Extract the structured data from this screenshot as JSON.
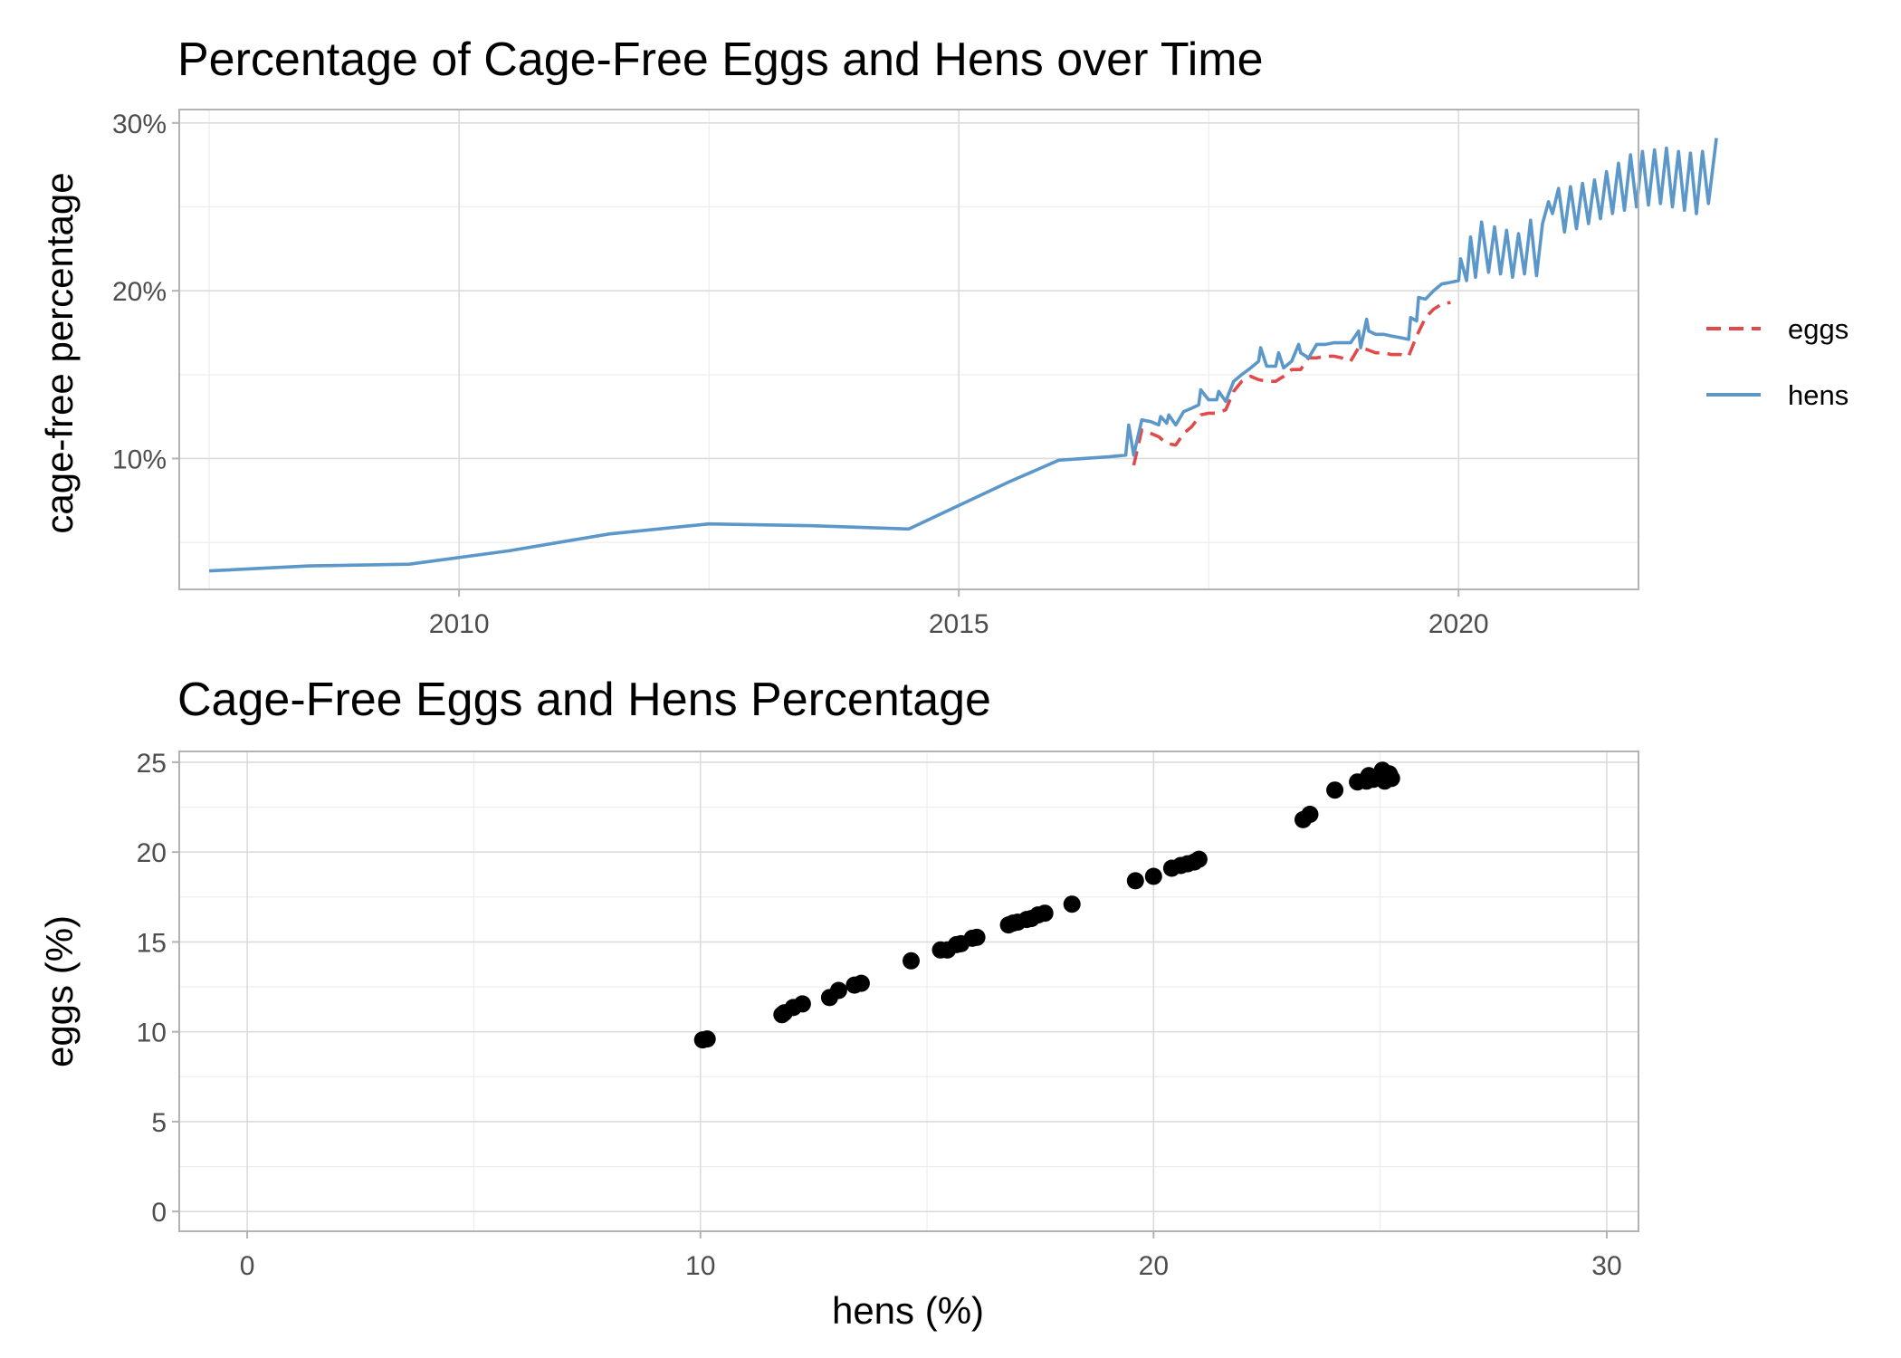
{
  "chart_data": [
    {
      "type": "line",
      "title": "Percentage of Cage-Free Eggs and Hens over Time",
      "xlabel": "",
      "ylabel": "cage-free percentage",
      "x_ticks": [
        2010,
        2015,
        2020
      ],
      "y_ticks": [
        10,
        20,
        30
      ],
      "y_tick_labels": [
        "10%",
        "20%",
        "30%"
      ],
      "xlim": [
        2007.2,
        2021.8
      ],
      "ylim": [
        2.2,
        30.8
      ],
      "grid": true,
      "legend_position": "right",
      "series": [
        {
          "name": "eggs",
          "color": "#e04a4a",
          "dash": "dashed",
          "points": [
            [
              2016.75,
              9.6
            ],
            [
              2016.83,
              11.7
            ],
            [
              2016.92,
              11.5
            ],
            [
              2017.0,
              11.3
            ],
            [
              2017.08,
              10.9
            ],
            [
              2017.17,
              10.8
            ],
            [
              2017.25,
              11.5
            ],
            [
              2017.33,
              11.9
            ],
            [
              2017.42,
              12.6
            ],
            [
              2017.5,
              12.7
            ],
            [
              2017.58,
              12.7
            ],
            [
              2017.67,
              12.9
            ],
            [
              2017.75,
              14.0
            ],
            [
              2017.83,
              14.6
            ],
            [
              2017.92,
              14.9
            ],
            [
              2018.0,
              14.7
            ],
            [
              2018.08,
              14.6
            ],
            [
              2018.17,
              14.6
            ],
            [
              2018.25,
              14.9
            ],
            [
              2018.33,
              15.3
            ],
            [
              2018.42,
              15.3
            ],
            [
              2018.5,
              16.0
            ],
            [
              2018.58,
              16.0
            ],
            [
              2018.67,
              16.1
            ],
            [
              2018.75,
              16.1
            ],
            [
              2018.83,
              16.0
            ],
            [
              2018.92,
              15.8
            ],
            [
              2019.0,
              16.6
            ],
            [
              2019.08,
              16.5
            ],
            [
              2019.17,
              16.3
            ],
            [
              2019.25,
              16.3
            ],
            [
              2019.33,
              16.2
            ],
            [
              2019.42,
              16.2
            ],
            [
              2019.5,
              16.1
            ],
            [
              2019.58,
              17.3
            ],
            [
              2019.67,
              18.4
            ],
            [
              2019.75,
              18.9
            ],
            [
              2019.83,
              19.2
            ],
            [
              2019.92,
              19.3
            ]
          ]
        },
        {
          "name": "hens",
          "color": "#5b97c9",
          "dash": "solid",
          "points": [
            [
              2007.5,
              3.3
            ],
            [
              2008.5,
              3.6
            ],
            [
              2009.5,
              3.7
            ],
            [
              2010.5,
              4.5
            ],
            [
              2011.5,
              5.5
            ],
            [
              2012.5,
              6.1
            ],
            [
              2013.5,
              6.0
            ],
            [
              2014.5,
              5.8
            ],
            [
              2015.5,
              8.6
            ],
            [
              2016.0,
              9.9
            ],
            [
              2016.5,
              10.1
            ],
            [
              2016.67,
              10.2
            ],
            [
              2016.7,
              12.0
            ],
            [
              2016.75,
              10.2
            ],
            [
              2016.83,
              12.3
            ],
            [
              2016.92,
              12.2
            ],
            [
              2017.0,
              12.0
            ],
            [
              2017.02,
              12.5
            ],
            [
              2017.08,
              12.1
            ],
            [
              2017.1,
              12.6
            ],
            [
              2017.17,
              12.0
            ],
            [
              2017.25,
              12.8
            ],
            [
              2017.33,
              13.0
            ],
            [
              2017.4,
              13.2
            ],
            [
              2017.42,
              14.1
            ],
            [
              2017.5,
              13.5
            ],
            [
              2017.58,
              13.5
            ],
            [
              2017.6,
              14.0
            ],
            [
              2017.67,
              13.4
            ],
            [
              2017.75,
              14.6
            ],
            [
              2017.83,
              15.0
            ],
            [
              2017.92,
              15.4
            ],
            [
              2018.0,
              15.8
            ],
            [
              2018.02,
              16.6
            ],
            [
              2018.08,
              15.5
            ],
            [
              2018.17,
              15.5
            ],
            [
              2018.2,
              16.3
            ],
            [
              2018.25,
              15.4
            ],
            [
              2018.33,
              15.8
            ],
            [
              2018.4,
              16.8
            ],
            [
              2018.42,
              16.3
            ],
            [
              2018.5,
              16.0
            ],
            [
              2018.58,
              16.8
            ],
            [
              2018.67,
              16.8
            ],
            [
              2018.75,
              16.9
            ],
            [
              2018.83,
              16.9
            ],
            [
              2018.92,
              16.9
            ],
            [
              2019.0,
              17.6
            ],
            [
              2019.02,
              16.6
            ],
            [
              2019.08,
              18.3
            ],
            [
              2019.1,
              17.6
            ],
            [
              2019.17,
              17.4
            ],
            [
              2019.25,
              17.4
            ],
            [
              2019.33,
              17.3
            ],
            [
              2019.42,
              17.2
            ],
            [
              2019.5,
              17.1
            ],
            [
              2019.52,
              18.4
            ],
            [
              2019.58,
              18.2
            ],
            [
              2019.6,
              19.6
            ],
            [
              2019.67,
              19.5
            ],
            [
              2019.75,
              20.0
            ],
            [
              2019.83,
              20.4
            ],
            [
              2019.92,
              20.5
            ],
            [
              2020.0,
              20.6
            ],
            [
              2020.02,
              21.9
            ],
            [
              2020.08,
              20.6
            ],
            [
              2020.12,
              23.2
            ],
            [
              2020.17,
              20.8
            ],
            [
              2020.23,
              24.1
            ],
            [
              2020.3,
              21.1
            ],
            [
              2020.36,
              23.8
            ],
            [
              2020.42,
              21.0
            ],
            [
              2020.48,
              23.6
            ],
            [
              2020.54,
              20.8
            ],
            [
              2020.6,
              23.4
            ],
            [
              2020.66,
              21.0
            ],
            [
              2020.72,
              24.2
            ],
            [
              2020.78,
              20.9
            ],
            [
              2020.84,
              24.0
            ],
            [
              2020.9,
              25.3
            ],
            [
              2020.94,
              24.6
            ],
            [
              2021.0,
              26.1
            ],
            [
              2021.06,
              23.5
            ],
            [
              2021.12,
              26.2
            ],
            [
              2021.18,
              23.7
            ],
            [
              2021.24,
              26.4
            ],
            [
              2021.3,
              24.0
            ],
            [
              2021.36,
              26.6
            ],
            [
              2021.42,
              24.3
            ],
            [
              2021.48,
              27.1
            ],
            [
              2021.54,
              24.6
            ],
            [
              2021.6,
              27.6
            ],
            [
              2021.66,
              24.8
            ],
            [
              2021.72,
              28.1
            ],
            [
              2021.78,
              25.0
            ],
            [
              2021.84,
              28.3
            ],
            [
              2021.9,
              25.1
            ],
            [
              2021.96,
              28.4
            ],
            [
              2022.02,
              25.2
            ],
            [
              2022.08,
              28.5
            ],
            [
              2022.14,
              25.0
            ],
            [
              2022.2,
              28.3
            ],
            [
              2022.26,
              24.8
            ],
            [
              2022.32,
              28.2
            ],
            [
              2022.38,
              24.6
            ],
            [
              2022.44,
              28.3
            ],
            [
              2022.5,
              25.2
            ],
            [
              2022.58,
              29.1
            ]
          ]
        }
      ]
    },
    {
      "type": "scatter",
      "title": "Cage-Free Eggs and Hens Percentage",
      "xlabel": "hens (%)",
      "ylabel": "eggs (%)",
      "x_ticks": [
        0,
        10,
        20,
        30
      ],
      "y_ticks": [
        0,
        5,
        10,
        15,
        20,
        25
      ],
      "xlim": [
        -1.5,
        30.7
      ],
      "ylim": [
        -1.1,
        25.6
      ],
      "grid": true,
      "point_color": "#000000",
      "points": [
        [
          10.05,
          9.55
        ],
        [
          10.15,
          9.6
        ],
        [
          11.8,
          10.95
        ],
        [
          11.85,
          11.05
        ],
        [
          12.05,
          11.35
        ],
        [
          12.25,
          11.55
        ],
        [
          12.85,
          11.9
        ],
        [
          13.05,
          12.3
        ],
        [
          13.4,
          12.6
        ],
        [
          13.55,
          12.7
        ],
        [
          14.65,
          13.95
        ],
        [
          15.3,
          14.55
        ],
        [
          15.45,
          14.55
        ],
        [
          15.65,
          14.85
        ],
        [
          15.75,
          14.9
        ],
        [
          16.0,
          15.2
        ],
        [
          16.1,
          15.25
        ],
        [
          16.8,
          15.95
        ],
        [
          16.9,
          16.05
        ],
        [
          17.0,
          16.1
        ],
        [
          17.2,
          16.25
        ],
        [
          17.3,
          16.3
        ],
        [
          17.45,
          16.5
        ],
        [
          17.6,
          16.6
        ],
        [
          18.2,
          17.1
        ],
        [
          19.6,
          18.4
        ],
        [
          20.0,
          18.65
        ],
        [
          20.4,
          19.1
        ],
        [
          20.6,
          19.25
        ],
        [
          20.75,
          19.35
        ],
        [
          20.9,
          19.45
        ],
        [
          21.0,
          19.6
        ],
        [
          23.3,
          21.8
        ],
        [
          23.45,
          22.1
        ],
        [
          24.0,
          23.45
        ],
        [
          24.5,
          23.9
        ],
        [
          24.7,
          23.95
        ],
        [
          24.75,
          24.25
        ],
        [
          24.85,
          24.05
        ],
        [
          24.95,
          24.15
        ],
        [
          25.05,
          24.55
        ],
        [
          25.1,
          23.95
        ],
        [
          25.2,
          24.35
        ],
        [
          25.25,
          24.1
        ]
      ]
    }
  ]
}
